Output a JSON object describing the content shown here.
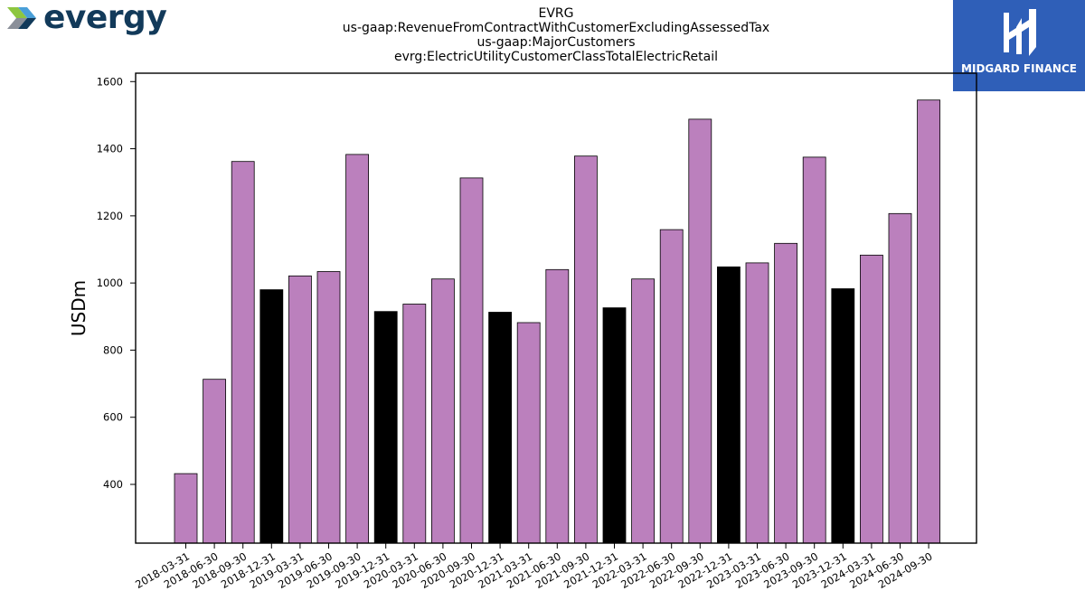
{
  "logos": {
    "left_brand": "evergy",
    "right_brand": "MIDGARD FINANCE"
  },
  "header": {
    "ticker": "EVRG",
    "line2": "us-gaap:RevenueFromContractWithCustomerExcludingAssessedTax",
    "line3": "us-gaap:MajorCustomers",
    "line4": "evrg:ElectricUtilityCustomerClassTotalElectricRetail"
  },
  "chart_data": {
    "type": "bar",
    "title": "EVRG",
    "ylabel": "USDm",
    "xlabel": "",
    "ylim": [
      225,
      1625
    ],
    "yticks": [
      400,
      600,
      800,
      1000,
      1200,
      1400,
      1600
    ],
    "grid": false,
    "colors": {
      "quarter": "#bb80bd",
      "year_end": "#000000"
    },
    "categories": [
      "2018-03-31",
      "2018-06-30",
      "2018-09-30",
      "2018-12-31",
      "2019-03-31",
      "2019-06-30",
      "2019-09-30",
      "2019-12-31",
      "2020-03-31",
      "2020-06-30",
      "2020-09-30",
      "2020-12-31",
      "2021-03-31",
      "2021-06-30",
      "2021-09-30",
      "2021-12-31",
      "2022-03-31",
      "2022-06-30",
      "2022-09-30",
      "2022-12-31",
      "2023-03-31",
      "2023-06-30",
      "2023-09-30",
      "2023-12-31",
      "2024-03-31",
      "2024-06-30",
      "2024-09-30"
    ],
    "values": [
      432,
      713,
      1362,
      980,
      1021,
      1034,
      1383,
      915,
      937,
      1012,
      1313,
      913,
      882,
      1040,
      1378,
      926,
      1012,
      1159,
      1488,
      1048,
      1060,
      1118,
      1375,
      983,
      1083,
      1207,
      1545
    ]
  }
}
